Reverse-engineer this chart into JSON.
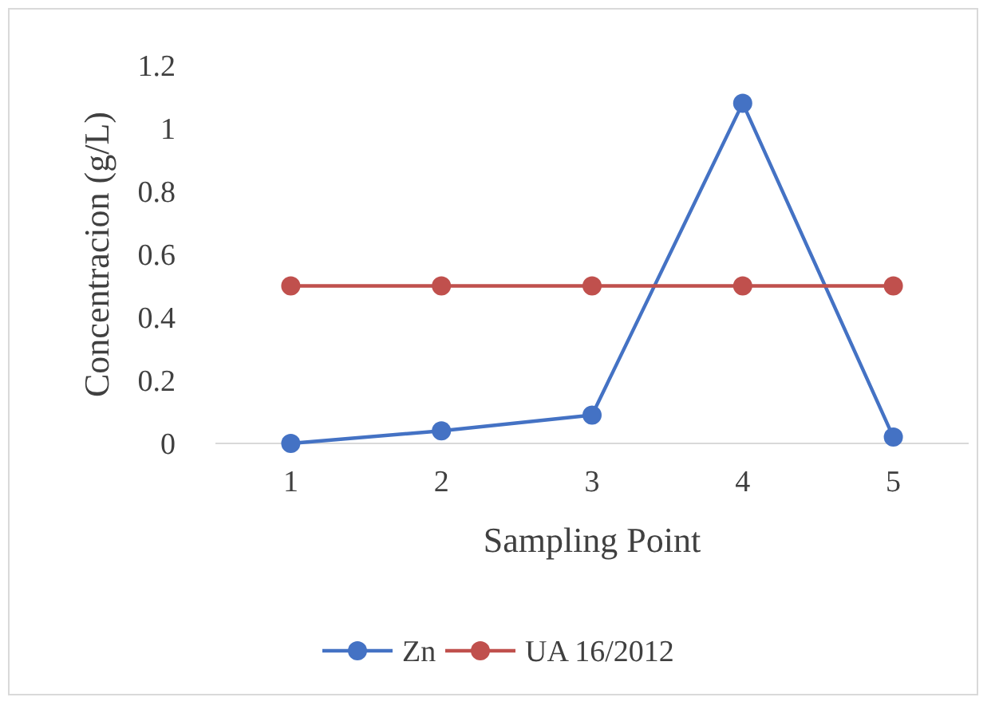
{
  "chart_data": {
    "type": "line",
    "xlabel": "Sampling Point",
    "ylabel": "Concentracion (g/L)",
    "categories": [
      "1",
      "2",
      "3",
      "4",
      "5"
    ],
    "series": [
      {
        "name": "Zn",
        "color": "#4472c4",
        "values": [
          0,
          0.04,
          0.09,
          1.08,
          0.02
        ]
      },
      {
        "name": "UA 16/2012",
        "color": "#c0504d",
        "values": [
          0.5,
          0.5,
          0.5,
          0.5,
          0.5
        ]
      }
    ],
    "ylim": [
      0,
      1.2
    ],
    "yticks": [
      0,
      0.2,
      0.4,
      0.6,
      0.8,
      1,
      1.2
    ],
    "grid": false,
    "legend": "bottom",
    "marker": "circle",
    "line_style": "solid"
  }
}
